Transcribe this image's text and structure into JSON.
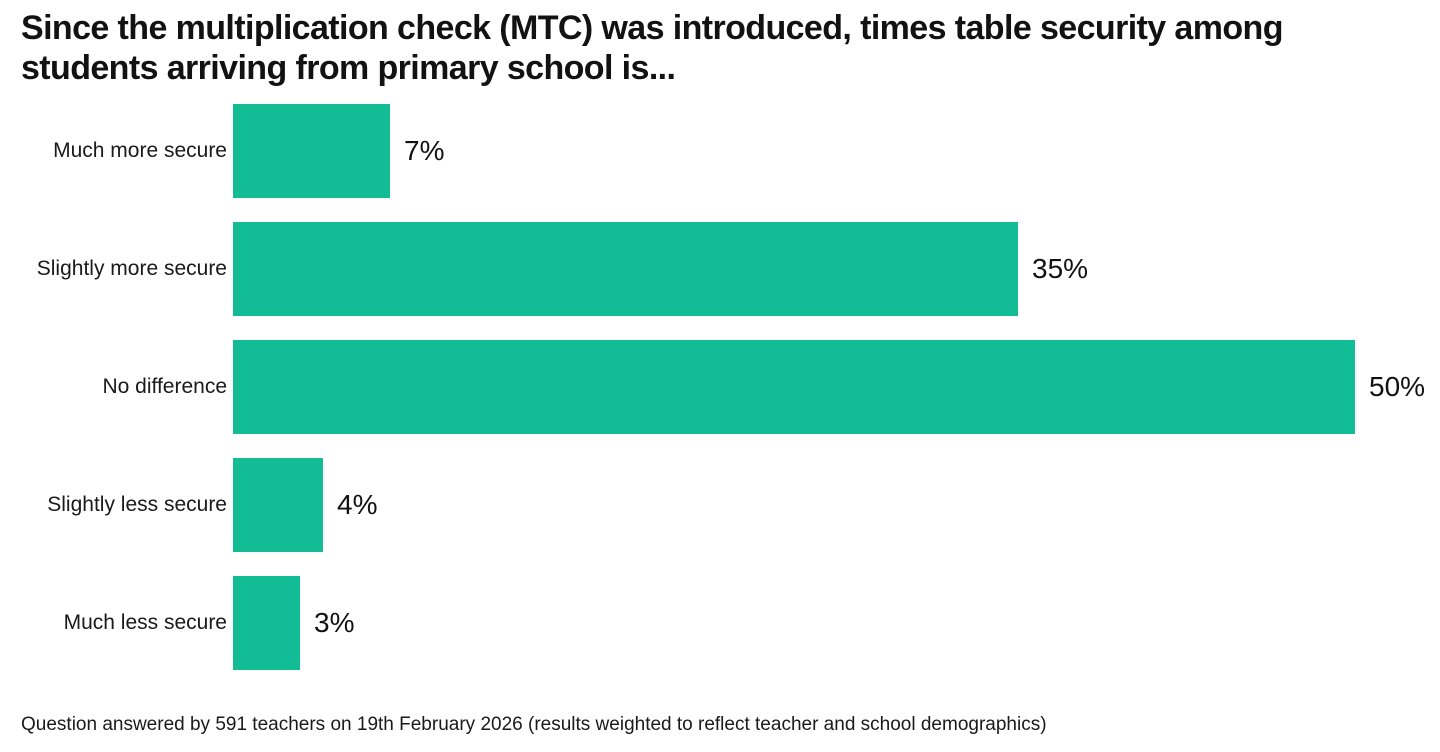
{
  "title": "Since the multiplication check (MTC) was introduced, times table security among students arriving from primary school is...",
  "footnote": "Question answered by 591 teachers on 19th February 2026 (results weighted to reflect teacher and school demographics)",
  "colors": {
    "bar": "#12BC94",
    "title_text": "#121212",
    "label_text": "#1a1a1a"
  },
  "chart_data": {
    "type": "bar",
    "orientation": "horizontal",
    "title": "Since the multiplication check (MTC) was introduced, times table security among students arriving from primary school is...",
    "categories": [
      "Much more secure",
      "Slightly more secure",
      "No difference",
      "Slightly less secure",
      "Much less secure"
    ],
    "values": [
      7,
      35,
      50,
      4,
      3
    ],
    "value_labels": [
      "7%",
      "35%",
      "50%",
      "4%",
      "3%"
    ],
    "xlabel": "",
    "ylabel": "",
    "xlim": [
      0,
      50
    ],
    "grid": false,
    "legend": false,
    "bar_color": "#12BC94",
    "footnote": "Question answered by 591 teachers on 19th February 2026 (results weighted to reflect teacher and school demographics)"
  }
}
